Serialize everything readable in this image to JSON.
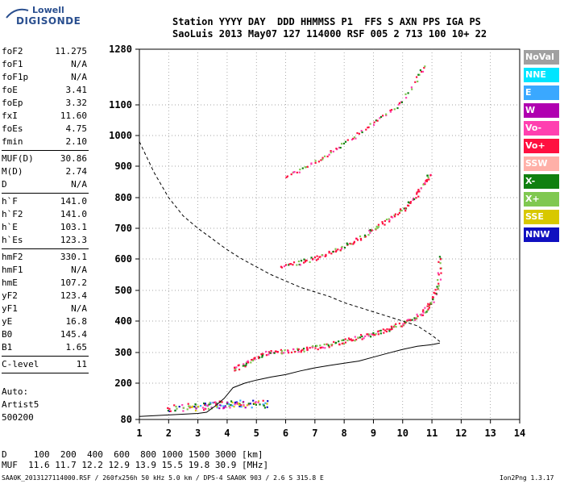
{
  "logo": {
    "line1": "Lowell",
    "line2": "DIGISONDE"
  },
  "header": {
    "line1": "Station YYYY DAY  DDD HHMMSS P1  FFS S AXN PPS IGA PS",
    "line2": "SaoLuis 2013 May07 127 114000 RSF 005 2 713 100 10+ 22"
  },
  "params_group1": [
    {
      "k": "foF2",
      "v": "11.275"
    },
    {
      "k": "foF1",
      "v": "N/A"
    },
    {
      "k": "foF1p",
      "v": "N/A"
    },
    {
      "k": "foE",
      "v": "3.41"
    },
    {
      "k": "foEp",
      "v": "3.32"
    },
    {
      "k": "fxI",
      "v": "11.60"
    },
    {
      "k": "foEs",
      "v": "4.75"
    },
    {
      "k": "fmin",
      "v": "2.10"
    }
  ],
  "params_group2": [
    {
      "k": "MUF(D)",
      "v": "30.86"
    },
    {
      "k": "M(D)",
      "v": "2.74"
    },
    {
      "k": "D",
      "v": "N/A"
    }
  ],
  "params_group3": [
    {
      "k": "h`F",
      "v": "141.0"
    },
    {
      "k": "h`F2",
      "v": "141.0"
    },
    {
      "k": "h`E",
      "v": "103.1"
    },
    {
      "k": "h`Es",
      "v": "123.3"
    }
  ],
  "params_group4": [
    {
      "k": "hmF2",
      "v": "330.1"
    },
    {
      "k": "hmF1",
      "v": "N/A"
    },
    {
      "k": "hmE",
      "v": "107.2"
    },
    {
      "k": "yF2",
      "v": "123.4"
    },
    {
      "k": "yF1",
      "v": "N/A"
    },
    {
      "k": "yE",
      "v": "16.8"
    },
    {
      "k": "B0",
      "v": "145.4"
    },
    {
      "k": "B1",
      "v": "1.65"
    }
  ],
  "params_group5": [
    {
      "k": "C-level",
      "v": "11"
    }
  ],
  "auto": {
    "line1": "Auto:",
    "line2": "Artist5",
    "line3": "500200"
  },
  "legend": [
    {
      "label": "NoVal",
      "color": "#a0a0a0"
    },
    {
      "label": "NNE",
      "color": "#00e5ff"
    },
    {
      "label": "E",
      "color": "#3aa8ff"
    },
    {
      "label": "W",
      "color": "#b000b0"
    },
    {
      "label": "Vo-",
      "color": "#ff40b0"
    },
    {
      "label": "Vo+",
      "color": "#ff1040"
    },
    {
      "label": "SSW",
      "color": "#ffb0a8"
    },
    {
      "label": "X-",
      "color": "#108010"
    },
    {
      "label": "X+",
      "color": "#80c850"
    },
    {
      "label": "SSE",
      "color": "#d8c800"
    },
    {
      "label": "NNW",
      "color": "#1010c0"
    }
  ],
  "footer": {
    "line1": "D     100  200  400  600  800 1000 1500 3000 [km]",
    "line2": "MUF  11.6 11.7 12.2 12.9 13.9 15.5 19.8 30.9 [MHz]",
    "line3": "SAA0K_2013127114000.RSF / 260fx256h 50 kHz 5.0 km / DPS-4 SAA0K 903 / 2.6 S 315.8 E",
    "version": "Ion2Png 1.3.17"
  },
  "chart_data": {
    "type": "scatter",
    "x": [
      1,
      2,
      3,
      4,
      5,
      6,
      7,
      8,
      9,
      10,
      11,
      12,
      13,
      14
    ],
    "xlim": [
      1,
      14
    ],
    "y_ticks": [
      80,
      200,
      300,
      400,
      500,
      600,
      700,
      800,
      900,
      1000,
      1100,
      1280
    ],
    "ylim": [
      80,
      1280
    ],
    "grid": true,
    "series": [
      {
        "x": [
          4.2,
          4.6,
          5.0,
          5.5,
          6.0,
          6.5,
          7.0,
          7.5,
          8.0,
          8.5,
          9.0,
          9.5,
          10.0,
          10.4,
          10.8,
          11.0,
          11.2,
          11.27
        ],
        "y": [
          245,
          265,
          290,
          303,
          306,
          310,
          318,
          327,
          338,
          350,
          363,
          378,
          395,
          412,
          440,
          470,
          520,
          620
        ]
      },
      {
        "x": [
          5.8,
          6.5,
          7.0,
          7.5,
          8.0,
          8.5,
          9.0,
          9.5,
          10.0,
          10.4,
          10.7,
          10.9
        ],
        "y": [
          580,
          590,
          605,
          622,
          645,
          670,
          700,
          730,
          765,
          800,
          850,
          880
        ]
      },
      {
        "x": [
          6.0,
          6.5,
          7.0,
          7.5,
          8.0,
          8.5,
          9.0,
          9.5,
          10.0,
          10.5,
          10.7
        ],
        "y": [
          870,
          890,
          915,
          945,
          975,
          1010,
          1045,
          1080,
          1115,
          1190,
          1230
        ]
      },
      {
        "x": [
          2.0,
          2.5,
          3.0,
          3.3,
          3.6,
          3.9,
          4.2,
          4.5,
          5.0,
          5.4
        ],
        "y": [
          120,
          122,
          125,
          128,
          130,
          132,
          133,
          134,
          134,
          133
        ]
      },
      {
        "x": [
          1.0,
          1.5,
          2.0,
          2.5,
          3.0,
          3.5,
          4.0,
          4.5,
          5.0,
          5.5,
          6.0,
          6.5,
          7.0,
          7.5,
          8.0,
          8.5,
          9.0,
          9.5,
          10.0,
          10.5,
          11.0,
          11.27
        ],
        "y": [
          980,
          880,
          800,
          740,
          700,
          665,
          630,
          600,
          575,
          550,
          530,
          510,
          495,
          480,
          460,
          445,
          430,
          415,
          400,
          385,
          355,
          335
        ]
      },
      {
        "x": [
          1.0,
          2.0,
          3.0,
          3.3,
          3.6,
          3.9,
          4.2,
          4.6,
          5.0,
          5.5,
          6.0,
          6.5,
          7.0,
          7.5,
          8.0,
          8.5,
          9.0,
          9.5,
          10.0,
          10.5,
          11.0,
          11.27
        ],
        "y": [
          90,
          95,
          100,
          104,
          125,
          150,
          185,
          200,
          210,
          220,
          228,
          240,
          250,
          258,
          265,
          272,
          285,
          298,
          310,
          320,
          325,
          330
        ]
      }
    ]
  }
}
